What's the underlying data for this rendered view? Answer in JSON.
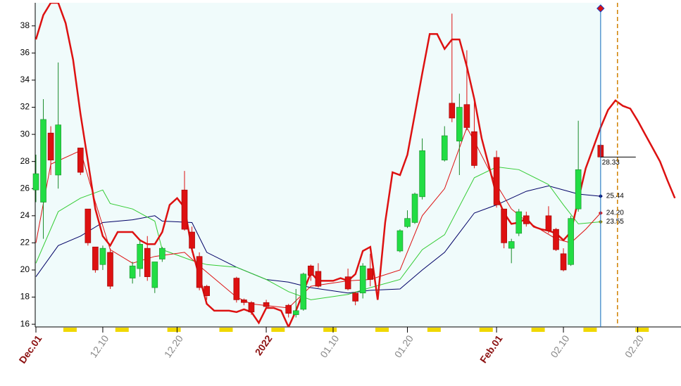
{
  "chart_data": {
    "type": "candlestick",
    "x": [
      "12.01",
      "12.02",
      "12.03",
      "12.04",
      "12.07",
      "12.08",
      "12.09",
      "12.10",
      "12.11",
      "12.14",
      "12.15",
      "12.16",
      "12.17",
      "12.18",
      "12.21",
      "12.22",
      "12.23",
      "12.24",
      "12.28",
      "12.29",
      "12.30",
      "01.01",
      "01.04",
      "01.05",
      "01.06",
      "01.07",
      "01.08",
      "01.12",
      "01.13",
      "01.14",
      "01.15",
      "01.19",
      "01.20",
      "01.21",
      "01.22",
      "01.25",
      "01.26",
      "01.27",
      "01.28",
      "01.29",
      "02.01",
      "02.02",
      "02.03",
      "02.04",
      "02.05",
      "02.08",
      "02.09",
      "02.10",
      "02.11",
      "02.12",
      "02.15"
    ],
    "open": [
      25.9,
      25,
      30.1,
      27,
      29,
      24.5,
      21.7,
      20.4,
      21.3,
      19.4,
      20.1,
      21.6,
      18.7,
      20.8,
      25.9,
      22.8,
      21,
      18.8,
      19.4,
      17.8,
      17.6,
      17.6,
      17.4,
      16.7,
      17.1,
      20.3,
      19.9,
      19.5,
      18.3,
      18.3,
      20.1,
      21.4,
      23.2,
      23.5,
      25.4,
      28.1,
      32.3,
      29.5,
      32.2,
      30.2,
      28.3,
      24.5,
      21.6,
      22.7,
      24,
      24,
      23,
      21.2,
      20.4,
      24.5,
      29.2
    ],
    "high": [
      28.5,
      32.6,
      30.6,
      35.3,
      29,
      24.5,
      21.7,
      21.8,
      21.6,
      20.6,
      22.2,
      22.5,
      20.6,
      21.7,
      27.3,
      23.2,
      21.3,
      18.9,
      19.5,
      17.9,
      17.7,
      17.8,
      17.5,
      18.6,
      19.8,
      20.4,
      20.5,
      20.1,
      18.4,
      20.5,
      21.2,
      23,
      24.4,
      25.7,
      29.7,
      30.6,
      38.9,
      33,
      36.2,
      32.7,
      28.8,
      24.5,
      22.3,
      24.5,
      24.3,
      24.7,
      23.1,
      21.6,
      24,
      31,
      29.3
    ],
    "low": [
      25,
      22.3,
      27,
      26,
      27,
      21.8,
      19.8,
      20,
      18.6,
      19,
      19.5,
      19.2,
      18.3,
      20.6,
      22.9,
      21.3,
      18.5,
      17.8,
      17.6,
      17.4,
      16.7,
      17.1,
      16.5,
      16.5,
      17,
      19.2,
      18.7,
      18.5,
      17.4,
      17.9,
      18.8,
      21.3,
      23.1,
      23.4,
      25.2,
      28,
      30.9,
      27,
      30.3,
      27.5,
      24.6,
      21.6,
      20.5,
      22.5,
      23.2,
      22.7,
      21.4,
      19.9,
      20.3,
      24.3,
      28.3
    ],
    "close": [
      27.1,
      31.1,
      28.1,
      30.7,
      27.2,
      22,
      20,
      21.6,
      18.8,
      20.3,
      21.9,
      19.5,
      20.6,
      21.6,
      23,
      21.6,
      18.7,
      18.1,
      17.8,
      17.6,
      16.9,
      17.3,
      16.8,
      17,
      19.7,
      19.6,
      18.8,
      18.6,
      17.7,
      20.3,
      19.3,
      22.9,
      23.8,
      25.6,
      28.8,
      29.9,
      31.2,
      32,
      30.5,
      27.7,
      24.8,
      22,
      22.1,
      24.3,
      23.4,
      22.9,
      21.5,
      20,
      23.8,
      27.4,
      28.33
    ],
    "up_color": "#22dd44",
    "down_color": "#dd1111",
    "overlays": [
      {
        "color": "#000066",
        "width": 1,
        "end_label": "25.44",
        "x": [
          "12.01",
          "12.04",
          "12.07",
          "12.10",
          "12.14",
          "12.17",
          "12.18",
          "12.22",
          "12.24",
          "12.28",
          "01.01",
          "01.04",
          "01.07",
          "01.12",
          "01.15",
          "01.19",
          "01.22",
          "01.25",
          "01.29",
          "02.01",
          "02.05",
          "02.08",
          "02.12",
          "02.15"
        ],
        "values": [
          19.5,
          21.8,
          22.5,
          23.5,
          23.7,
          24,
          23.6,
          23.5,
          21.3,
          20.2,
          19.3,
          19.1,
          18.7,
          18.3,
          18.5,
          18.6,
          20,
          21.3,
          24.2,
          24.8,
          25.8,
          26.2,
          25.6,
          25.44
        ]
      },
      {
        "color": "#33cc33",
        "width": 1,
        "end_label": "23.55",
        "marker_color": "#998800",
        "x": [
          "12.01",
          "12.04",
          "12.07",
          "12.10",
          "12.11",
          "12.14",
          "12.17",
          "12.18",
          "12.22",
          "12.24",
          "12.28",
          "01.01",
          "01.04",
          "01.07",
          "01.12",
          "01.15",
          "01.19",
          "01.22",
          "01.25",
          "01.29",
          "02.01",
          "02.04",
          "02.08",
          "02.10",
          "02.12",
          "02.15"
        ],
        "values": [
          20.5,
          24.3,
          25.3,
          25.9,
          24.9,
          24.5,
          23.6,
          21.5,
          20.7,
          20.4,
          20.2,
          19.3,
          18.4,
          17.8,
          18.2,
          18.7,
          19.3,
          21.5,
          22.6,
          26.8,
          27.6,
          27.4,
          26.3,
          24.8,
          23.4,
          23.55
        ]
      },
      {
        "color": "#dd1111",
        "width": 1,
        "end_label": "24.20",
        "x": [
          "12.01",
          "12.03",
          "12.07",
          "12.09",
          "12.11",
          "12.14",
          "12.17",
          "12.21",
          "12.23",
          "12.28",
          "12.30",
          "01.04",
          "01.07",
          "01.12",
          "01.15",
          "01.19",
          "01.22",
          "01.25",
          "01.28",
          "01.29",
          "02.01",
          "02.03",
          "02.05",
          "02.09",
          "02.11",
          "02.13",
          "02.15"
        ],
        "values": [
          22,
          27.8,
          28.8,
          25,
          21.5,
          20.5,
          21,
          21.3,
          20.3,
          18,
          17.5,
          17.2,
          18.8,
          19.2,
          19.3,
          20,
          24,
          26,
          30.5,
          29.5,
          26.3,
          24.5,
          23.6,
          22.3,
          22,
          23,
          24.2
        ]
      },
      {
        "color": "#dd1111",
        "width": 2.5,
        "x": [
          "12.01",
          "12.02",
          "12.03",
          "12.04",
          "12.05",
          "12.06",
          "12.07",
          "12.08",
          "12.09",
          "12.10",
          "12.11",
          "12.12",
          "12.13",
          "12.14",
          "12.15",
          "12.16",
          "12.17",
          "12.18",
          "12.19",
          "12.20",
          "12.21",
          "12.22",
          "12.23",
          "12.24",
          "12.25",
          "12.26",
          "12.27",
          "12.28",
          "12.29",
          "12.30",
          "12.31",
          "01.01",
          "01.02",
          "01.03",
          "01.04",
          "01.05",
          "01.06",
          "01.07",
          "01.08",
          "01.09",
          "01.10",
          "01.11",
          "01.12",
          "01.13",
          "01.14",
          "01.15",
          "01.16",
          "01.17",
          "01.18",
          "01.19",
          "01.20",
          "01.21",
          "01.22",
          "01.23",
          "01.24",
          "01.25",
          "01.26",
          "01.27",
          "01.28",
          "01.29",
          "01.30",
          "01.31",
          "02.01",
          "02.02",
          "02.03",
          "02.04",
          "02.05",
          "02.06",
          "02.07",
          "02.08",
          "02.09",
          "02.10",
          "02.11",
          "02.12",
          "02.13",
          "02.14",
          "02.15",
          "02.16",
          "02.17",
          "02.18",
          "02.19",
          "02.20",
          "02.21",
          "02.22",
          "02.23",
          "02.24",
          "02.25"
        ],
        "values": [
          37,
          38.8,
          39.7,
          39.7,
          38.2,
          35.5,
          31.5,
          28,
          24.5,
          22.5,
          21.8,
          22.8,
          22.8,
          22.8,
          22.2,
          21.9,
          21.9,
          22.8,
          24.8,
          25.3,
          24.6,
          21.5,
          19.5,
          17.5,
          17,
          17,
          17,
          16.9,
          17.1,
          16.9,
          16.1,
          17.2,
          17.2,
          17,
          15.8,
          17,
          18.4,
          19.8,
          19.2,
          19.2,
          19.2,
          19.4,
          19.2,
          19.7,
          21.4,
          21.7,
          17.8,
          23.5,
          27.2,
          27,
          28.5,
          31.5,
          34.5,
          37.4,
          37.4,
          36.3,
          37,
          37,
          35,
          32.6,
          29.7,
          27.6,
          25.5,
          24.2,
          23.4,
          23.5,
          23.8,
          23.2,
          23,
          22.9,
          22.7,
          22.2,
          22.8,
          25.2,
          27.5,
          29,
          30.5,
          31.8,
          32.5,
          32.1,
          31.9,
          31,
          30,
          29,
          28,
          26.6,
          25.3
        ]
      }
    ],
    "ylim": [
      15.8,
      39.7
    ],
    "yticks": [
      16,
      18,
      20,
      22,
      24,
      26,
      28,
      30,
      32,
      34,
      36,
      38
    ],
    "xticks": [
      {
        "value": "12.01",
        "label": "Dec.01"
      },
      "12.10",
      "12.20",
      {
        "value": "01.01",
        "label": "2022"
      },
      "01.10",
      "01.20",
      {
        "value": "02.01",
        "label": "Feb.01"
      },
      "02.10",
      "02.20"
    ]
  }
}
